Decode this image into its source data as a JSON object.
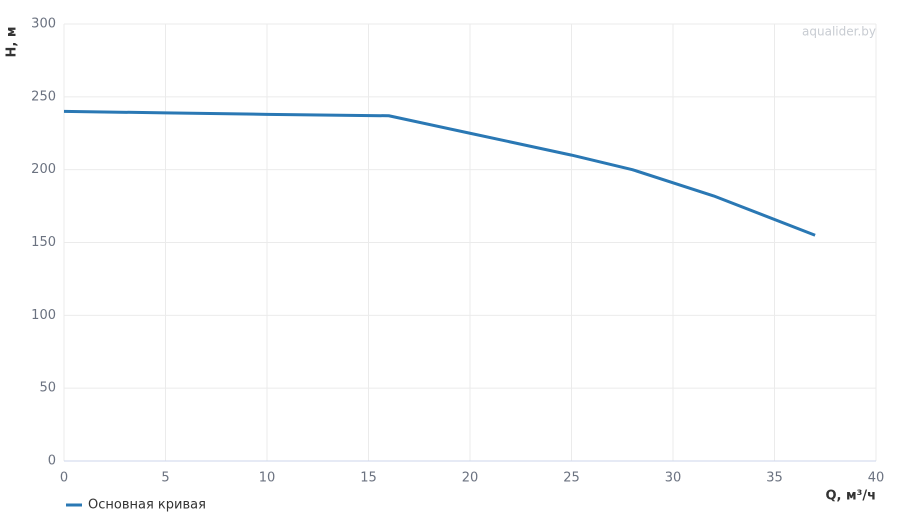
{
  "chart_data": {
    "type": "line",
    "watermark": "aqualider.by",
    "x_label": "Q, м³/ч",
    "y_label": "H, м",
    "x": [
      0,
      5,
      10,
      16,
      20,
      25,
      28,
      32,
      37
    ],
    "series": [
      {
        "name": "Основная кривая",
        "color": "#2a78b4",
        "values": [
          240,
          239,
          238,
          237,
          225,
          210,
          200,
          182,
          155
        ]
      }
    ],
    "xlim": [
      0,
      40
    ],
    "xticks": [
      0,
      5,
      10,
      15,
      20,
      25,
      30,
      35,
      40
    ],
    "ylim": [
      0,
      300
    ],
    "yticks": [
      0,
      50,
      100,
      150,
      200,
      250,
      300
    ],
    "grid": true
  }
}
